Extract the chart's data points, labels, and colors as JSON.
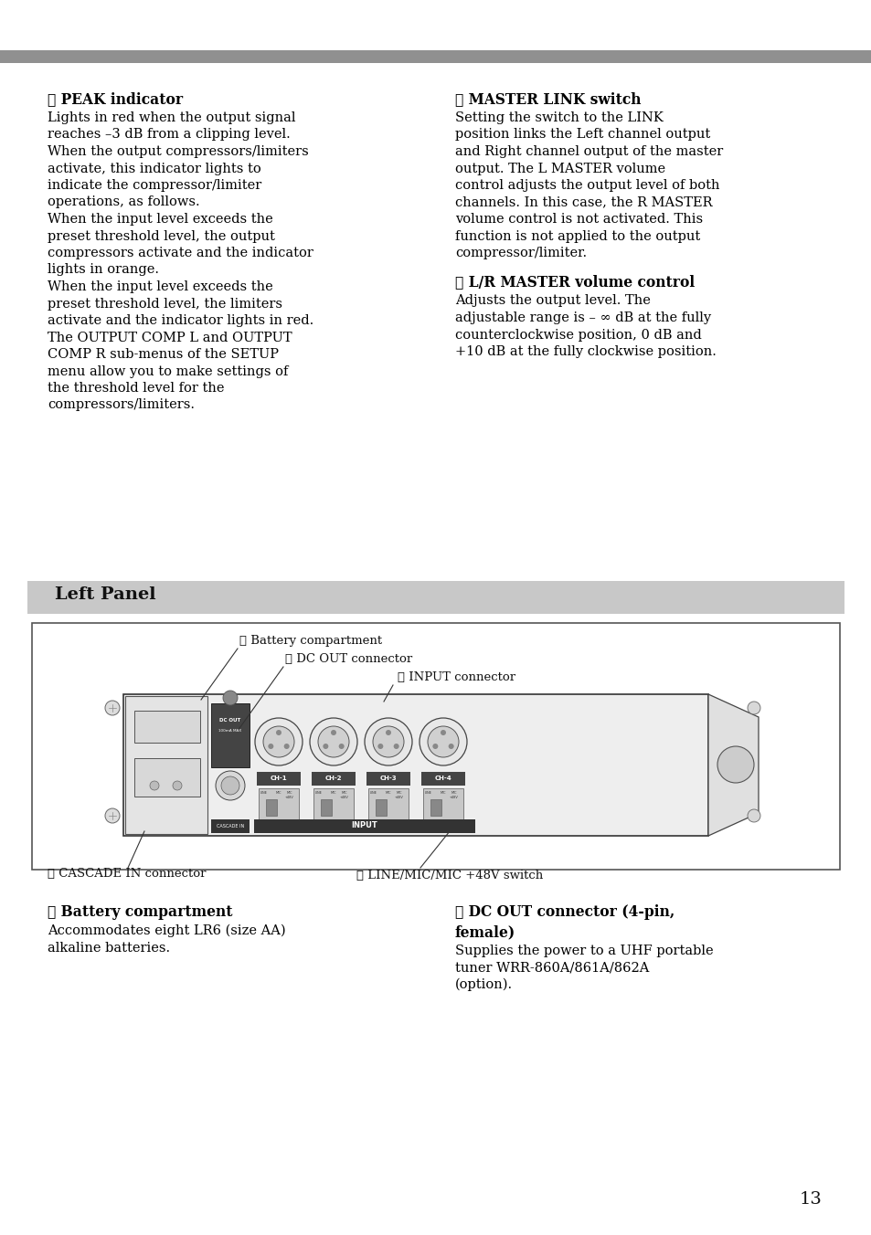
{
  "bg_color": "#ffffff",
  "top_bar_color": "#909090",
  "section1_heading": "① PEAK indicator",
  "section1_body": [
    "Lights in red when the output signal",
    "reaches –3 dB from a clipping level.",
    "When the output compressors/limiters",
    "activate, this indicator lights to",
    "indicate the compressor/limiter",
    "operations, as follows.",
    "When the input level exceeds the",
    "preset threshold level, the output",
    "compressors activate and the indicator",
    "lights in orange.",
    "When the input level exceeds the",
    "preset threshold level, the limiters",
    "activate and the indicator lights in red.",
    "The OUTPUT COMP L and OUTPUT",
    "COMP R sub-menus of the SETUP",
    "menu allow you to make settings of",
    "the threshold level for the",
    "compressors/limiters."
  ],
  "section2_heading": "② MASTER LINK switch",
  "section2_body": [
    "Setting the switch to the LINK",
    "position links the Left channel output",
    "and Right channel output of the master",
    "output. The L MASTER volume",
    "control adjusts the output level of both",
    "channels. In this case, the R MASTER",
    "volume control is not activated. This",
    "function is not applied to the output",
    "compressor/limiter."
  ],
  "section3_heading": "③ L/R MASTER volume control",
  "section3_body": [
    "Adjusts the output level. The",
    "adjustable range is – ∞ dB at the fully",
    "counterclockwise position, 0 dB and",
    "+10 dB at the fully clockwise position."
  ],
  "left_panel_heading": "Left Panel",
  "left_panel_bg": "#c8c8c8",
  "callout1_label": "❶ Battery compartment",
  "callout2_label": "❷ DC OUT connector",
  "callout3_label": "❸ INPUT connector",
  "callout4_label": "❹ LINE/MIC/MIC +48V switch",
  "callout5_label": "❺ CASCADE IN connector",
  "bottom_section1_heading": "❶ Battery compartment",
  "bottom_section1_body": [
    "Accommodates eight LR6 (size AA)",
    "alkaline batteries."
  ],
  "bottom_section2_heading": "❷ DC OUT connector (4-pin,",
  "bottom_section2_heading2": "female)",
  "bottom_section2_body": [
    "Supplies the power to a UHF portable",
    "tuner WRR-860A/861A/862A",
    "(option)."
  ],
  "page_number": "13"
}
